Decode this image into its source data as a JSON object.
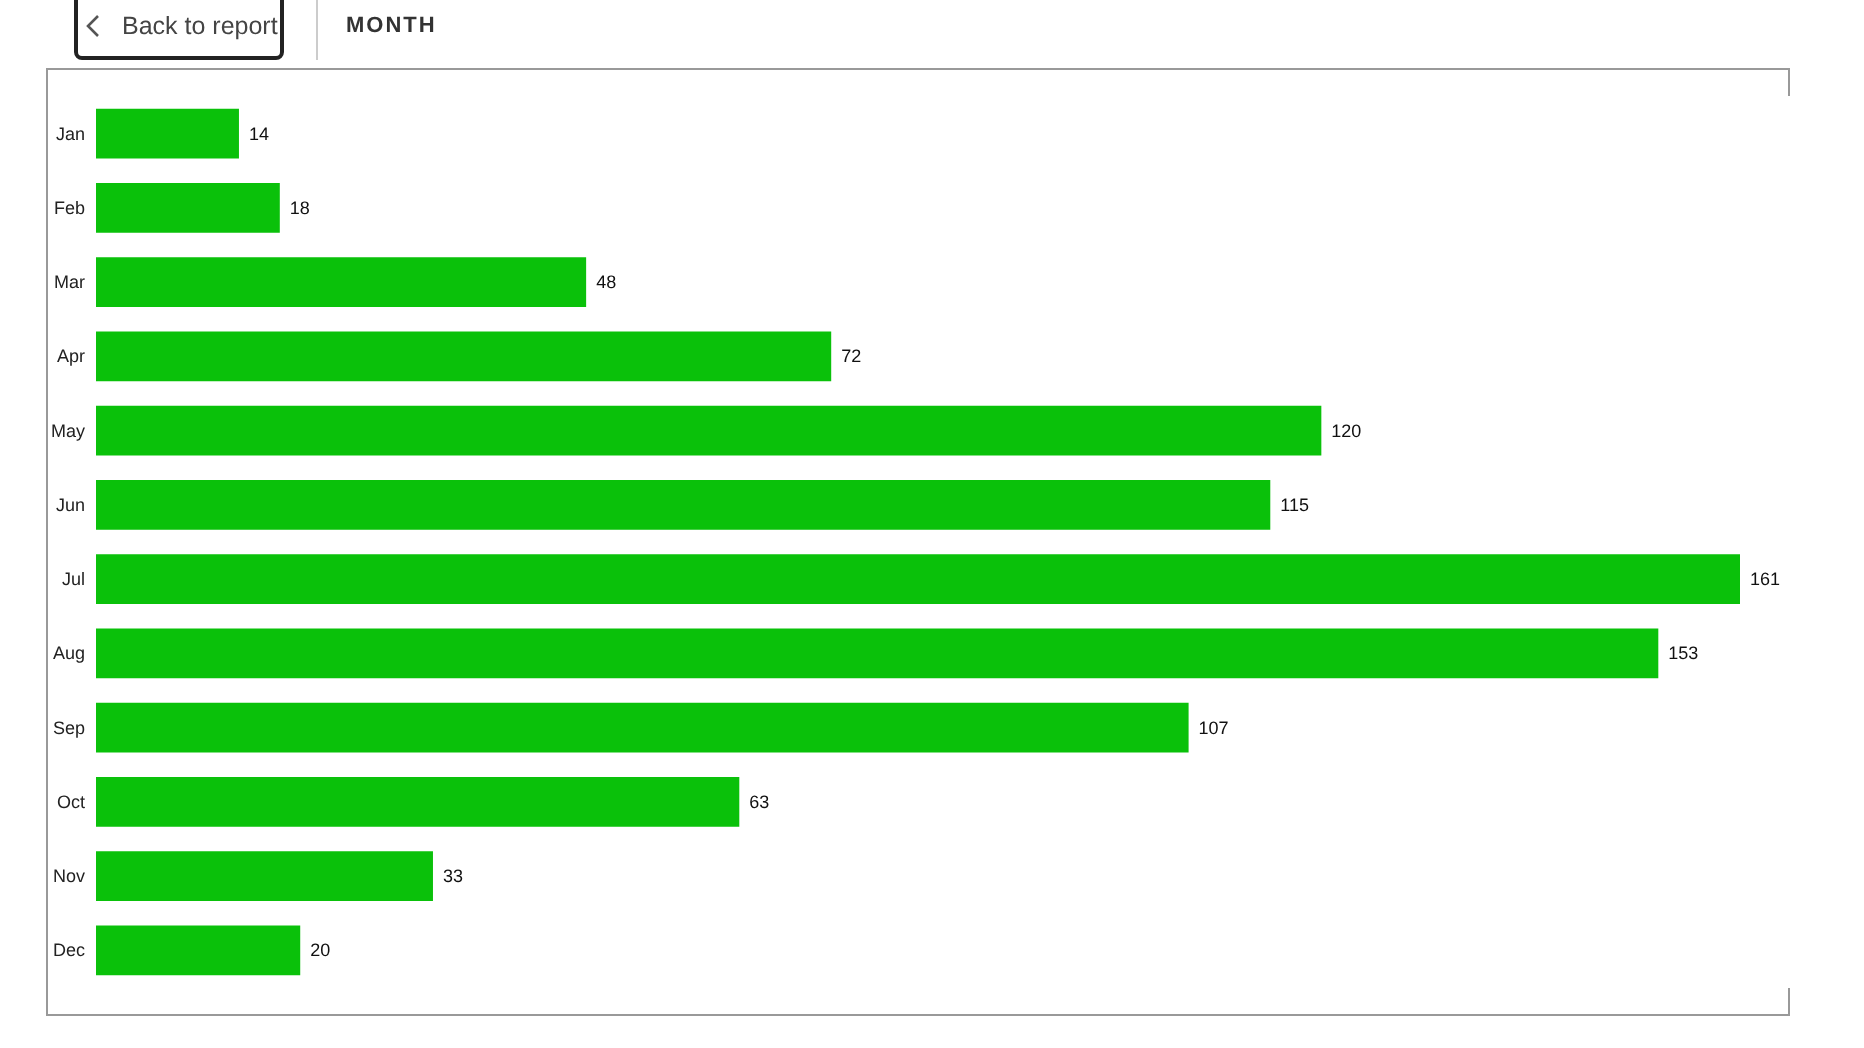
{
  "chart_data": {
    "type": "bar",
    "orientation": "horizontal",
    "title": "MONTH",
    "annotations": [
      "Back to report"
    ],
    "categories": [
      "Jan",
      "Feb",
      "Mar",
      "Apr",
      "May",
      "Jun",
      "Jul",
      "Aug",
      "Sep",
      "Oct",
      "Nov",
      "Dec"
    ],
    "values": [
      14,
      18,
      48,
      72,
      120,
      115,
      161,
      153,
      107,
      63,
      33,
      20
    ],
    "color": "#0ac10a",
    "data_labels": true,
    "tick_labels": "y"
  }
}
